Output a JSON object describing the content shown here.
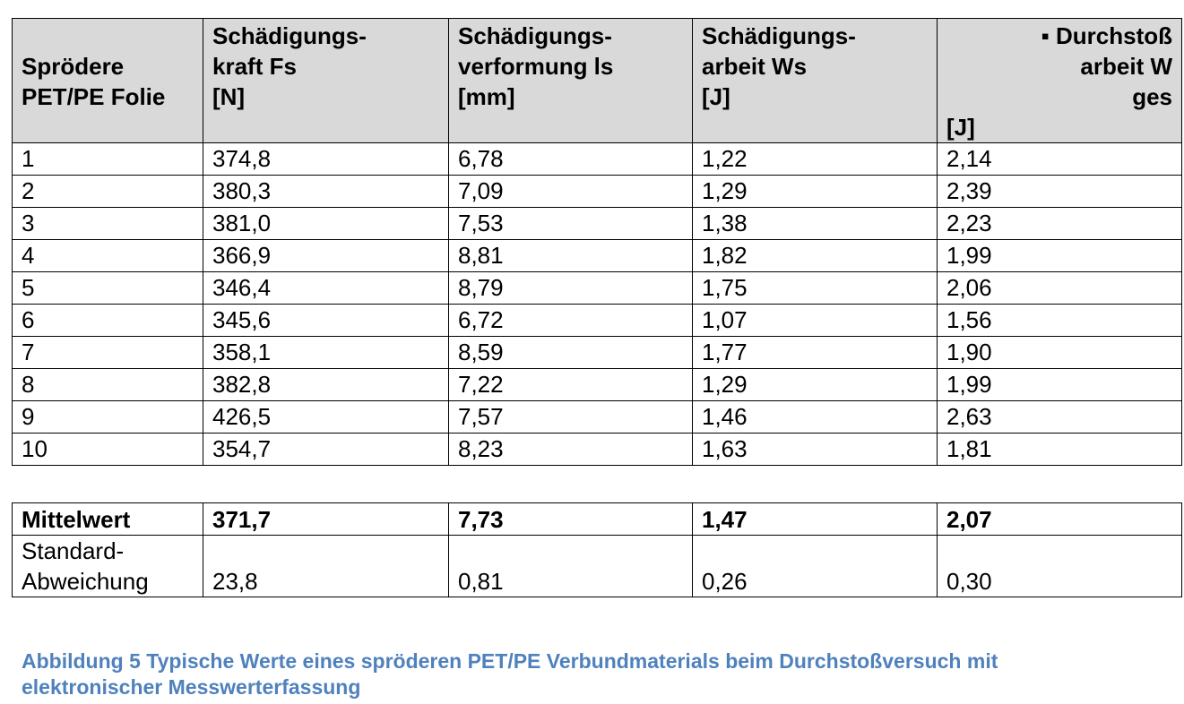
{
  "table": {
    "header": [
      [
        "Sprödere",
        "PET/PE Folie"
      ],
      [
        "Schädigungs-",
        "kraft      Fs",
        "[N]"
      ],
      [
        "Schädigungs-",
        "verformung    ls",
        "[mm]"
      ],
      [
        "Schädigungs-",
        "arbeit        Ws",
        "[J]"
      ],
      [
        "▪      Durchstoß",
        "arbeit   W",
        "ges",
        "[J]"
      ]
    ],
    "rows": [
      [
        "1",
        "374,8",
        "6,78",
        "1,22",
        "2,14"
      ],
      [
        "2",
        "380,3",
        "7,09",
        "1,29",
        "2,39"
      ],
      [
        "3",
        "381,0",
        "7,53",
        "1,38",
        "2,23"
      ],
      [
        "4",
        "366,9",
        "8,81",
        "1,82",
        "1,99"
      ],
      [
        "5",
        "346,4",
        "8,79",
        "1,75",
        "2,06"
      ],
      [
        "6",
        "345,6",
        "6,72",
        "1,07",
        "1,56"
      ],
      [
        "7",
        "358,1",
        "8,59",
        "1,77",
        "1,90"
      ],
      [
        "8",
        "382,8",
        "7,22",
        "1,29",
        "1,99"
      ],
      [
        "9",
        "426,5",
        "7,57",
        "1,46",
        "2,63"
      ],
      [
        "10",
        "354,7",
        "8,23",
        "1,63",
        "1,81"
      ]
    ]
  },
  "summary": {
    "rows": [
      [
        [
          "Mittelwert"
        ],
        [
          "371,7"
        ],
        [
          "7,73"
        ],
        [
          "1,47"
        ],
        [
          "2,07"
        ]
      ],
      [
        [
          "Standard-",
          "Abweichung"
        ],
        [
          "23,8"
        ],
        [
          "0,81"
        ],
        [
          "0,26"
        ],
        [
          "0,30"
        ]
      ]
    ]
  },
  "caption": [
    "Abbildung 5 Typische Werte eines spröderen PET/PE Verbundmaterials beim Durchstoßversuch mit",
    "elektronischer Messwerterfassung"
  ]
}
